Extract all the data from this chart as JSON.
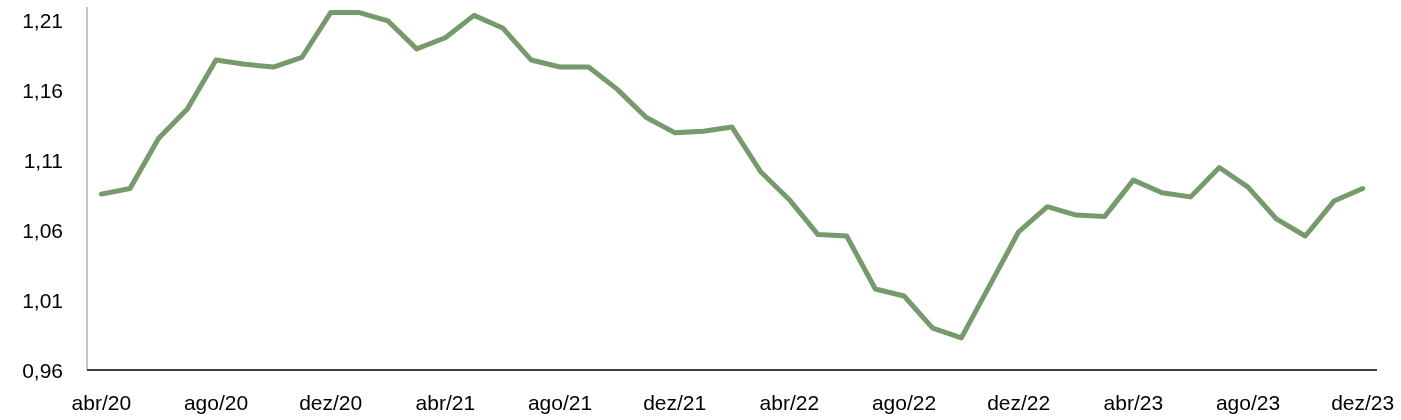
{
  "chart_data": {
    "type": "line",
    "categories": [
      "abr/20",
      null,
      null,
      null,
      "ago/20",
      null,
      null,
      null,
      "dez/20",
      null,
      null,
      null,
      "abr/21",
      null,
      null,
      null,
      "ago/21",
      null,
      null,
      null,
      "dez/21",
      null,
      null,
      null,
      "abr/22",
      null,
      null,
      null,
      "ago/22",
      null,
      null,
      null,
      "dez/22",
      null,
      null,
      null,
      "abr/23",
      null,
      null,
      null,
      "ago/23",
      null,
      null,
      null,
      "dez/23"
    ],
    "series": [
      {
        "color": "#769a6c",
        "values": [
          1.086,
          1.09,
          1.126,
          1.147,
          1.182,
          1.179,
          1.177,
          1.184,
          1.216,
          1.216,
          1.21,
          1.19,
          1.198,
          1.214,
          1.205,
          1.182,
          1.177,
          1.177,
          1.161,
          1.141,
          1.13,
          1.131,
          1.134,
          1.102,
          1.082,
          1.057,
          1.056,
          1.018,
          1.013,
          0.99,
          0.983,
          1.021,
          1.059,
          1.077,
          1.071,
          1.07,
          1.096,
          1.087,
          1.084,
          1.105,
          1.091,
          1.068,
          1.056,
          1.081,
          1.09
        ]
      }
    ],
    "ylim": [
      0.96,
      1.22
    ],
    "yticks": [
      {
        "value": 0.96,
        "label": "0,96"
      },
      {
        "value": 1.01,
        "label": "1,01"
      },
      {
        "value": 1.06,
        "label": "1,06"
      },
      {
        "value": 1.11,
        "label": "1,11"
      },
      {
        "value": 1.16,
        "label": "1,16"
      },
      {
        "value": 1.21,
        "label": "1,21"
      }
    ],
    "line_style": "solid"
  }
}
